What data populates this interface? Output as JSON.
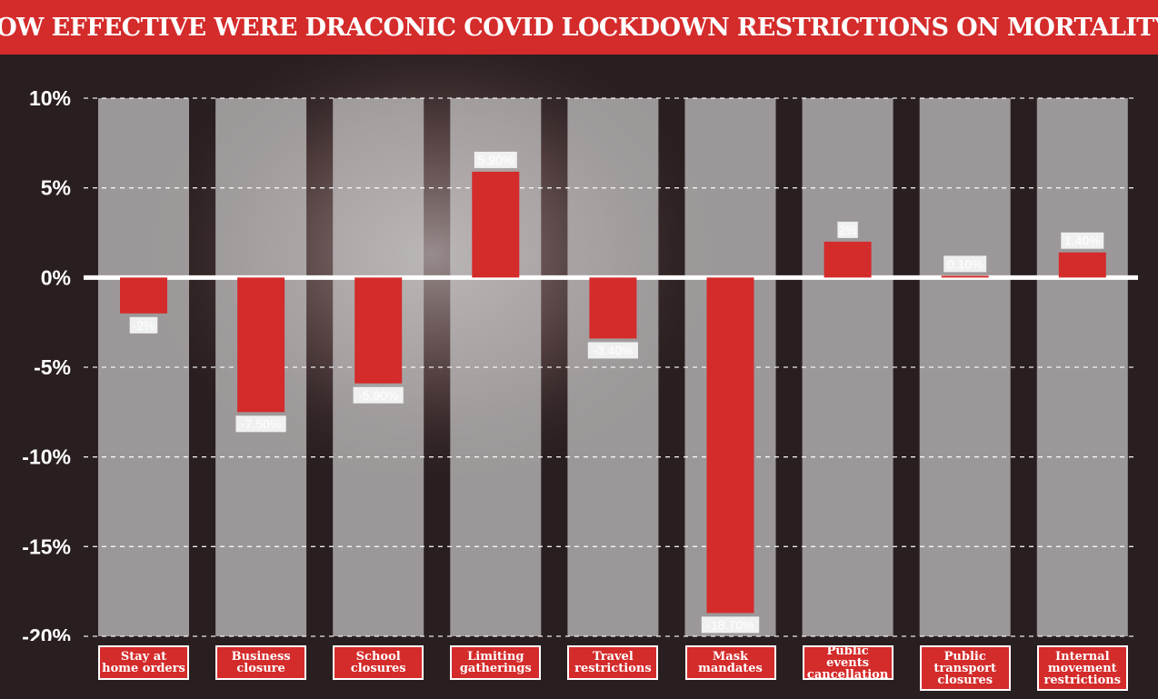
{
  "title": "HOW EFFECTIVE WERE DRACONIC COVID LOCKDOWN RESTRICTIONS ON MORTALITY?",
  "colors": {
    "accent": "#d42b2b",
    "background": "#2a1f20",
    "column": "#c9c7c7"
  },
  "chart_data": {
    "type": "bar",
    "title": "HOW EFFECTIVE WERE DRACONIC COVID LOCKDOWN RESTRICTIONS ON MORTALITY?",
    "categories": [
      "Stay at\nhome orders",
      "Business\nclosure",
      "School\nclosures",
      "Limiting\ngatherings",
      "Travel\nrestrictions",
      "Mask\nmandates",
      "Public events\ncancellation",
      "Public\ntransport\nclosures",
      "Internal\nmovement\nrestrictions"
    ],
    "values": [
      -2,
      -7.5,
      -5.9,
      5.9,
      -3.4,
      -18.7,
      2,
      0.1,
      1.4
    ],
    "value_labels": [
      "-2%",
      "-7.50%",
      "-5.90%",
      "5.90%",
      "-3.40%",
      "-18.70%",
      "2%",
      "0.10%",
      "1.40%"
    ],
    "ylim": [
      -20,
      10
    ],
    "yticks": [
      10,
      5,
      0,
      -5,
      -10,
      -15,
      -20
    ],
    "ytick_labels": [
      "10%",
      "5%",
      "0%",
      "-5%",
      "-10%",
      "-15%",
      "-20%"
    ],
    "xlabel": "",
    "ylabel": "",
    "grid": true
  }
}
